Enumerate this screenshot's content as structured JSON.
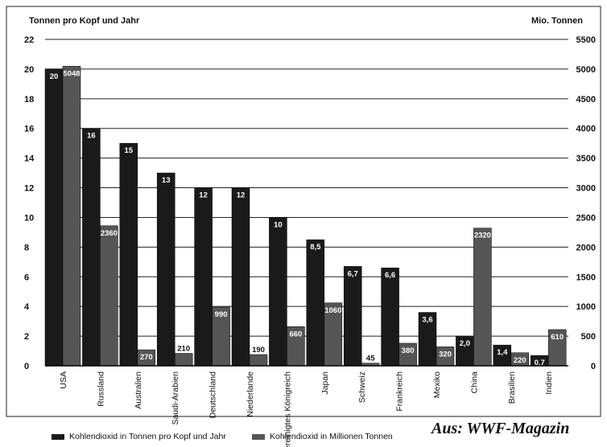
{
  "chart_data": {
    "type": "bar",
    "title": "",
    "ylabel_left": "Tonnen pro Kopf und Jahr",
    "ylabel_right": "Mio. Tonnen",
    "categories": [
      "USA",
      "Russland",
      "Australien",
      "Saudi-Arabien",
      "Deutschland",
      "Niederlande",
      "Vereinigtes Königreich",
      "Japan",
      "Schweiz",
      "Frankreich",
      "Mexiko",
      "China",
      "Brasilien",
      "Indien"
    ],
    "series": [
      {
        "name": "Kohlendioxid in Tonnen pro Kopf und Jahr",
        "axis": "left",
        "color": "#1a1a1a",
        "values": [
          20,
          16,
          15,
          13,
          12,
          12,
          10,
          8.5,
          6.7,
          6.6,
          3.6,
          2.0,
          1.4,
          0.7
        ],
        "labels": [
          "20",
          "16",
          "15",
          "13",
          "12",
          "12",
          "10",
          "8,5",
          "6,7",
          "6,6",
          "3,6",
          "2,0",
          "1,4",
          "0,7"
        ]
      },
      {
        "name": "Kohlendioxid in Millionen Tonnen",
        "axis": "right",
        "color": "#555555",
        "values": [
          5048,
          2360,
          270,
          210,
          990,
          190,
          660,
          1060,
          45,
          380,
          320,
          2320,
          220,
          610
        ],
        "labels": [
          "5048",
          "2360",
          "270",
          "210",
          "990",
          "190",
          "660",
          "1060",
          "45",
          "380",
          "320",
          "2320",
          "220",
          "610"
        ]
      }
    ],
    "ylim_left": [
      0,
      22
    ],
    "yticks_left": [
      "0",
      "2",
      "4",
      "6",
      "8",
      "10",
      "12",
      "14",
      "16",
      "18",
      "20",
      "22"
    ],
    "ylim_right": [
      0,
      5500
    ],
    "yticks_right": [
      "0",
      "500",
      "1000",
      "1500",
      "2000",
      "2500",
      "3000",
      "3500",
      "4000",
      "4500",
      "5000",
      "5500"
    ],
    "grid": true,
    "legend": "bottom"
  },
  "source_note": "Aus: WWF-Magazin"
}
